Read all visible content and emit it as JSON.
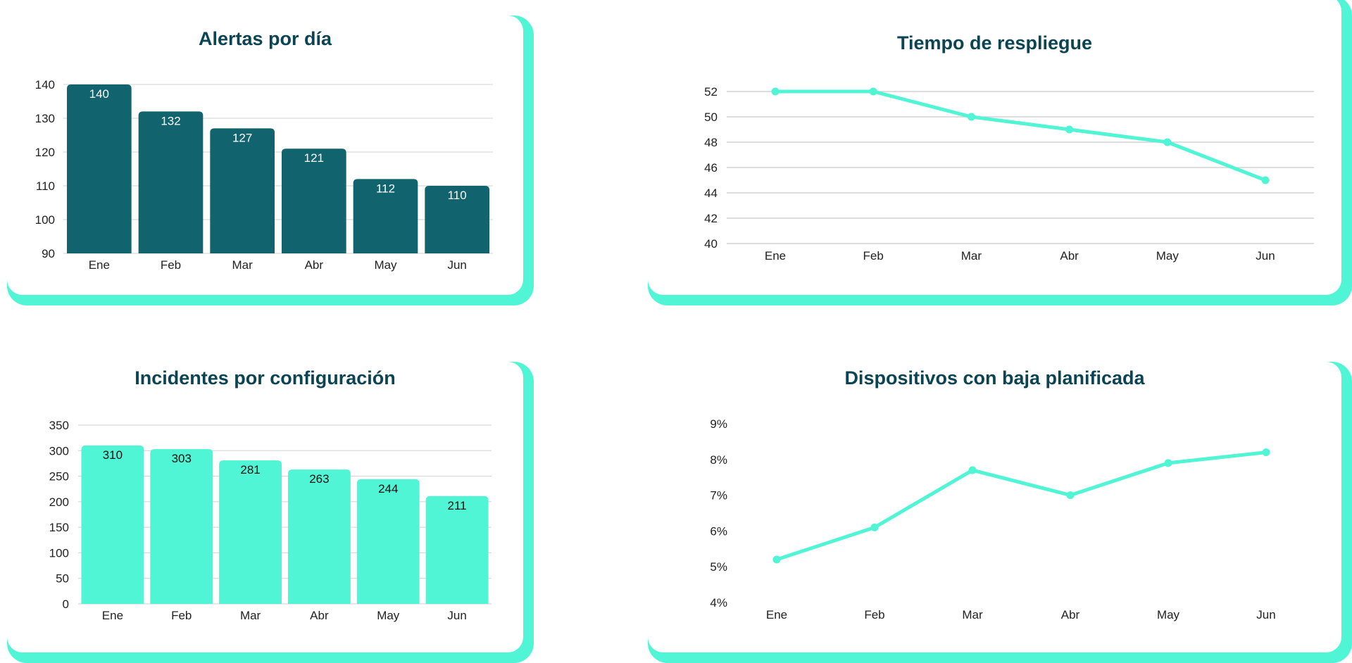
{
  "chart_data": [
    {
      "type": "bar",
      "title": "Alertas por día",
      "categories": [
        "Ene",
        "Feb",
        "Mar",
        "Abr",
        "May",
        "Jun"
      ],
      "values": [
        140,
        132,
        127,
        121,
        112,
        110
      ],
      "yticks": [
        "90",
        "100",
        "110",
        "120",
        "130",
        "140"
      ],
      "ylim": [
        90,
        140
      ],
      "data_labels": true,
      "bar_color": "#11646e",
      "label_color": "#ffffff",
      "grid": true
    },
    {
      "type": "line",
      "title": "Tiempo de respliegue",
      "categories": [
        "Ene",
        "Feb",
        "Mar",
        "Abr",
        "May",
        "Jun"
      ],
      "values": [
        52,
        52,
        50,
        49,
        48,
        45
      ],
      "yticks": [
        "40",
        "42",
        "44",
        "46",
        "48",
        "50",
        "52"
      ],
      "ylim": [
        40,
        52
      ],
      "line_color": "#4ff5d4",
      "grid": true
    },
    {
      "type": "bar",
      "title": "Incidentes por configuración",
      "categories": [
        "Ene",
        "Feb",
        "Mar",
        "Abr",
        "May",
        "Jun"
      ],
      "values": [
        310,
        303,
        281,
        263,
        244,
        211
      ],
      "yticks": [
        "0",
        "50",
        "100",
        "150",
        "200",
        "250",
        "300",
        "350"
      ],
      "ylim": [
        0,
        350
      ],
      "data_labels": true,
      "bar_color": "#4ff5d4",
      "label_color": "#111111",
      "grid": true
    },
    {
      "type": "line",
      "title": "Dispositivos con baja planificada",
      "categories": [
        "Ene",
        "Feb",
        "Mar",
        "Abr",
        "May",
        "Jun"
      ],
      "values": [
        5.2,
        6.1,
        7.7,
        7.0,
        7.9,
        8.2
      ],
      "yticks": [
        "4%",
        "5%",
        "6%",
        "7%",
        "8%",
        "9%"
      ],
      "ylim": [
        4,
        9
      ],
      "line_color": "#4ff5d4",
      "grid": false
    }
  ]
}
